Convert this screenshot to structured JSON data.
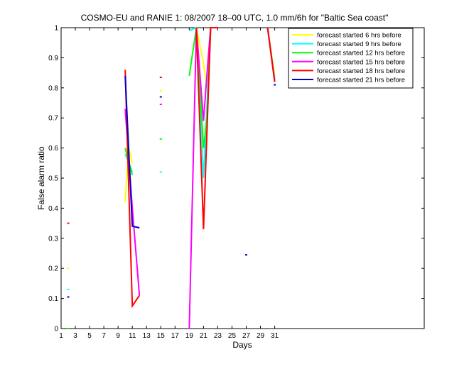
{
  "chart_data": {
    "type": "line",
    "title": "COSMO-EU and RANIE 1: 08/2007 18–00 UTC, 1.0 mm/6h for \"Baltic Sea coast\"",
    "xlabel": "Days",
    "ylabel": "False alarm ratio",
    "xlim": [
      1,
      52
    ],
    "ylim": [
      0,
      1
    ],
    "xticks": [
      1,
      3,
      5,
      7,
      9,
      11,
      13,
      15,
      17,
      19,
      21,
      23,
      25,
      27,
      29,
      31
    ],
    "yticks": [
      0,
      0.1,
      0.2,
      0.3,
      0.4,
      0.5,
      0.6,
      0.7,
      0.8,
      0.9,
      1
    ],
    "xtick_labels": [
      "1",
      "3",
      "5",
      "7",
      "9",
      "11",
      "13",
      "15",
      "17",
      "19",
      "21",
      "23",
      "25",
      "27",
      "29",
      "31"
    ],
    "ytick_labels": [
      "0",
      "0.1",
      "0.2",
      "0.3",
      "0.4",
      "0.5",
      "0.6",
      "0.7",
      "0.8",
      "0.9",
      "1"
    ],
    "legend_position": "top-right",
    "grid": false,
    "series": [
      {
        "name": "forecast started 6 hrs before",
        "color": "#ffff00",
        "points": [
          [
            2,
            0.2
          ],
          [
            10,
            0.42
          ],
          [
            10.5,
            0.6
          ],
          [
            11,
            0.55
          ],
          [
            15,
            0.79
          ],
          [
            19,
            0.99
          ],
          [
            20,
            1
          ],
          [
            21,
            0.88
          ],
          [
            21.5,
            0.8
          ],
          [
            22,
            1
          ],
          [
            23,
            1
          ],
          [
            30,
            1
          ],
          [
            31,
            0.84
          ]
        ]
      },
      {
        "name": "forecast started 9 hrs before",
        "color": "#00ffff",
        "points": [
          [
            2,
            0.13
          ],
          [
            10,
            0.58
          ],
          [
            11,
            0.52
          ],
          [
            15,
            0.52
          ],
          [
            19,
            0.99
          ],
          [
            20,
            1
          ],
          [
            21,
            0.5
          ],
          [
            21.5,
            0.75
          ],
          [
            22,
            1
          ],
          [
            23,
            1
          ],
          [
            30,
            1
          ],
          [
            31,
            0.83
          ]
        ]
      },
      {
        "name": "forecast started 12 hrs before",
        "color": "#00ff00",
        "points": [
          [
            2,
            0.0
          ],
          [
            10,
            0.6
          ],
          [
            11,
            0.51
          ],
          [
            15,
            0.63
          ],
          [
            19,
            0.84
          ],
          [
            20,
            1
          ],
          [
            21,
            0.6
          ],
          [
            21.5,
            0.7
          ],
          [
            22,
            1
          ],
          [
            23,
            1
          ],
          [
            30,
            1
          ],
          [
            31,
            0.82
          ]
        ]
      },
      {
        "name": "forecast started 15 hrs before",
        "color": "#ff00ff",
        "points": [
          [
            10,
            0.73
          ],
          [
            11,
            0.4
          ],
          [
            12,
            0.11
          ],
          [
            15,
            0.745
          ],
          [
            19,
            0.0
          ],
          [
            20,
            1
          ],
          [
            21,
            0.69
          ],
          [
            21.5,
            0.85
          ],
          [
            22,
            1
          ],
          [
            23,
            1
          ],
          [
            30,
            1
          ],
          [
            31,
            0.82
          ]
        ]
      },
      {
        "name": "forecast started 18 hrs before",
        "color": "#ff0000",
        "points": [
          [
            2,
            0.35
          ],
          [
            10,
            0.86
          ],
          [
            11,
            0.075
          ],
          [
            12,
            0.11
          ],
          [
            15,
            0.835
          ],
          [
            20,
            1
          ],
          [
            21,
            0.33
          ],
          [
            22,
            1
          ],
          [
            23,
            1
          ],
          [
            30,
            1
          ],
          [
            31,
            0.82
          ]
        ]
      },
      {
        "name": "forecast started 21 hrs before",
        "color": "#0000cc",
        "points": [
          [
            2,
            0.105
          ],
          [
            10,
            0.84
          ],
          [
            11,
            0.34
          ],
          [
            12,
            0.335
          ],
          [
            15,
            0.77
          ],
          [
            27,
            0.245
          ],
          [
            31,
            0.81
          ]
        ]
      }
    ]
  }
}
